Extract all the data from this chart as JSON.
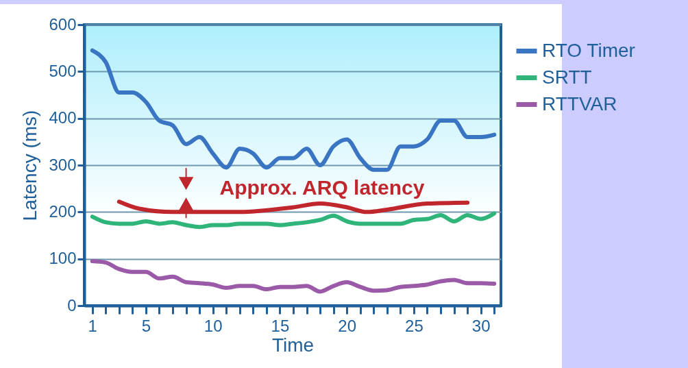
{
  "chart_data": {
    "type": "line",
    "xlabel": "Time",
    "ylabel": "Latency (ms)",
    "x": [
      1,
      2,
      3,
      4,
      5,
      6,
      7,
      8,
      9,
      10,
      11,
      12,
      13,
      14,
      15,
      16,
      17,
      18,
      19,
      20,
      21,
      22,
      23,
      24,
      25,
      26,
      27,
      28,
      29,
      30,
      31
    ],
    "series": [
      {
        "name": "RTO Timer",
        "color": "#3a75c4",
        "values": [
          545,
          520,
          455,
          455,
          435,
          395,
          385,
          345,
          360,
          325,
          295,
          335,
          325,
          295,
          315,
          315,
          335,
          300,
          340,
          355,
          315,
          290,
          290,
          340,
          340,
          355,
          395,
          395,
          360,
          360,
          365
        ]
      },
      {
        "name": "SRTT",
        "color": "#2fb57a",
        "values": [
          190,
          178,
          175,
          175,
          180,
          175,
          178,
          172,
          168,
          172,
          172,
          175,
          175,
          175,
          172,
          175,
          178,
          183,
          192,
          180,
          175,
          175,
          175,
          175,
          183,
          185,
          193,
          180,
          193,
          185,
          197
        ]
      },
      {
        "name": "RTTVAR",
        "color": "#9a5aa8",
        "values": [
          95,
          92,
          78,
          72,
          72,
          58,
          62,
          50,
          48,
          45,
          38,
          42,
          42,
          35,
          40,
          40,
          42,
          30,
          42,
          50,
          40,
          32,
          33,
          40,
          42,
          45,
          52,
          55,
          48,
          48,
          47
        ]
      },
      {
        "type": "line",
        "color": "#c0272d",
        "x": [
          3,
          4.5,
          7,
          12,
          16,
          18,
          20,
          21.5,
          23,
          26,
          29
        ],
        "values": [
          222,
          207,
          200,
          200,
          210,
          218,
          210,
          200,
          205,
          218,
          220
        ]
      }
    ],
    "annotations": [
      "Approx. ARQ latency"
    ],
    "xlim": [
      0.4,
      31.5
    ],
    "xticks": [
      1,
      {
        "value": 2,
        "label": null
      },
      {
        "value": 3,
        "label": null
      },
      {
        "value": 4,
        "label": null
      },
      5,
      {
        "value": 6,
        "label": null
      },
      {
        "value": 7,
        "label": null
      },
      {
        "value": 8,
        "label": null
      },
      {
        "value": 9,
        "label": null
      },
      10,
      {
        "value": 11,
        "label": null
      },
      {
        "value": 12,
        "label": null
      },
      {
        "value": 13,
        "label": null
      },
      {
        "value": 14,
        "label": null
      },
      15,
      {
        "value": 16,
        "label": null
      },
      {
        "value": 17,
        "label": null
      },
      {
        "value": 18,
        "label": null
      },
      {
        "value": 19,
        "label": null
      },
      20,
      {
        "value": 21,
        "label": null
      },
      {
        "value": 22,
        "label": null
      },
      {
        "value": 23,
        "label": null
      },
      {
        "value": 24,
        "label": null
      },
      25,
      {
        "value": 26,
        "label": null
      },
      {
        "value": 27,
        "label": null
      },
      {
        "value": 28,
        "label": null
      },
      {
        "value": 29,
        "label": null
      },
      30,
      {
        "value": 31,
        "label": null
      }
    ],
    "ylim": [
      0,
      600
    ],
    "yticks": [
      0,
      100,
      200,
      300,
      400,
      500,
      600
    ],
    "grid": "y",
    "legend": "top right",
    "marker": "none",
    "line_style": "solid"
  }
}
